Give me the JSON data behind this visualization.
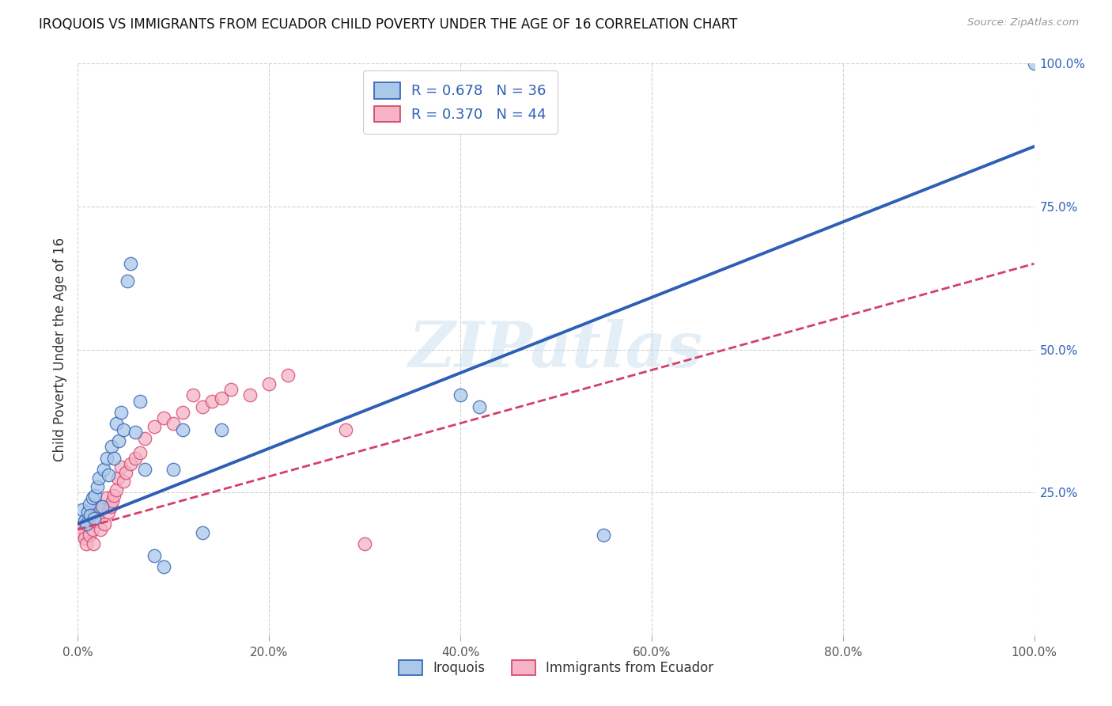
{
  "title": "IROQUOIS VS IMMIGRANTS FROM ECUADOR CHILD POVERTY UNDER THE AGE OF 16 CORRELATION CHART",
  "source": "Source: ZipAtlas.com",
  "ylabel": "Child Poverty Under the Age of 16",
  "legend_label1": "Iroquois",
  "legend_label2": "Immigrants from Ecuador",
  "r1": 0.678,
  "n1": 36,
  "r2": 0.37,
  "n2": 44,
  "color1": "#aac8e8",
  "color2": "#f5b3c5",
  "line_color1": "#2e5fb5",
  "line_color2": "#d43f6a",
  "bg_color": "#ffffff",
  "grid_color": "#cccccc",
  "watermark": "ZIPatlas",
  "xlim": [
    0.0,
    1.0
  ],
  "ylim": [
    0.0,
    1.0
  ],
  "xtick_vals": [
    0.0,
    0.2,
    0.4,
    0.6,
    0.8,
    1.0
  ],
  "xtick_labels": [
    "0.0%",
    "20.0%",
    "40.0%",
    "60.0%",
    "80.0%",
    "100.0%"
  ],
  "ytick_vals": [
    0.25,
    0.5,
    0.75,
    1.0
  ],
  "ytick_labels": [
    "25.0%",
    "50.0%",
    "75.0%",
    "100.0%"
  ],
  "iroquois_x": [
    0.005,
    0.007,
    0.009,
    0.01,
    0.012,
    0.013,
    0.015,
    0.017,
    0.018,
    0.02,
    0.022,
    0.025,
    0.027,
    0.03,
    0.032,
    0.035,
    0.038,
    0.04,
    0.043,
    0.045,
    0.048,
    0.052,
    0.055,
    0.06,
    0.065,
    0.07,
    0.08,
    0.09,
    0.1,
    0.11,
    0.13,
    0.15,
    0.4,
    0.42,
    0.55,
    1.0
  ],
  "iroquois_y": [
    0.22,
    0.2,
    0.195,
    0.215,
    0.23,
    0.21,
    0.24,
    0.205,
    0.245,
    0.26,
    0.275,
    0.225,
    0.29,
    0.31,
    0.28,
    0.33,
    0.31,
    0.37,
    0.34,
    0.39,
    0.36,
    0.62,
    0.65,
    0.355,
    0.41,
    0.29,
    0.14,
    0.12,
    0.29,
    0.36,
    0.18,
    0.36,
    0.42,
    0.4,
    0.175,
    1.0
  ],
  "ecuador_x": [
    0.003,
    0.005,
    0.007,
    0.008,
    0.009,
    0.01,
    0.012,
    0.013,
    0.015,
    0.016,
    0.018,
    0.02,
    0.022,
    0.024,
    0.026,
    0.028,
    0.03,
    0.032,
    0.034,
    0.036,
    0.038,
    0.04,
    0.042,
    0.045,
    0.048,
    0.05,
    0.055,
    0.06,
    0.065,
    0.07,
    0.08,
    0.09,
    0.1,
    0.11,
    0.12,
    0.13,
    0.14,
    0.15,
    0.16,
    0.18,
    0.2,
    0.22,
    0.28,
    0.3
  ],
  "ecuador_y": [
    0.19,
    0.18,
    0.17,
    0.2,
    0.16,
    0.195,
    0.175,
    0.21,
    0.185,
    0.16,
    0.2,
    0.205,
    0.22,
    0.185,
    0.225,
    0.195,
    0.24,
    0.215,
    0.225,
    0.235,
    0.245,
    0.255,
    0.275,
    0.295,
    0.27,
    0.285,
    0.3,
    0.31,
    0.32,
    0.345,
    0.365,
    0.38,
    0.37,
    0.39,
    0.42,
    0.4,
    0.41,
    0.415,
    0.43,
    0.42,
    0.44,
    0.455,
    0.36,
    0.16
  ],
  "blue_line_x0": 0.0,
  "blue_line_y0": 0.195,
  "blue_line_x1": 1.0,
  "blue_line_y1": 0.855,
  "pink_line_x0": 0.0,
  "pink_line_y0": 0.185,
  "pink_line_x1": 1.0,
  "pink_line_y1": 0.65
}
